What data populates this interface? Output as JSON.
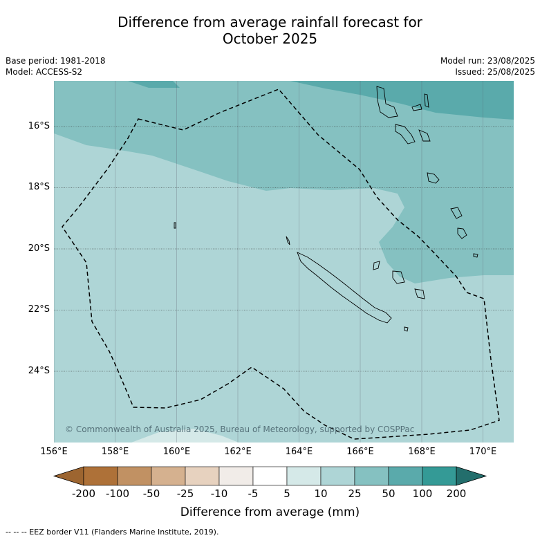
{
  "title_line1": "Difference from average rainfall forecast for",
  "title_line2": "October 2025",
  "base_period": "Base period: 1981-2018",
  "model": "Model: ACCESS-S2",
  "model_run": "Model run: 23/08/2025",
  "issued": "Issued: 25/08/2025",
  "copyright": "© Commonwealth of Australia 2025, Bureau of Meteorology, supported by COSPPac",
  "x_ticks": [
    "156°E",
    "158°E",
    "160°E",
    "162°E",
    "164°E",
    "166°E",
    "168°E",
    "170°E"
  ],
  "y_ticks": [
    "16°S",
    "18°S",
    "20°S",
    "22°S",
    "24°S"
  ],
  "colorbar": {
    "title": "Difference from average (mm)",
    "labels": [
      "-200",
      "-100",
      "-50",
      "-25",
      "-10",
      "-5",
      "5",
      "10",
      "25",
      "50",
      "100",
      "200"
    ],
    "colors": [
      "#ae7138",
      "#c19163",
      "#d5b18f",
      "#e7d2bf",
      "#f1ece8",
      "#ffffff",
      "#d5e9e8",
      "#aed5d6",
      "#85c1c1",
      "#5aaaab",
      "#349a96",
      "#236e6c"
    ]
  },
  "map_colors": {
    "band_10_25": "#aed5d6",
    "band_25_50": "#85c1c1",
    "band_50_100": "#5aaaab",
    "band_5_10": "#d5e9e8"
  },
  "footnote": "--  --  -- EEZ border V11 (Flanders Marine Institute, 2019)."
}
